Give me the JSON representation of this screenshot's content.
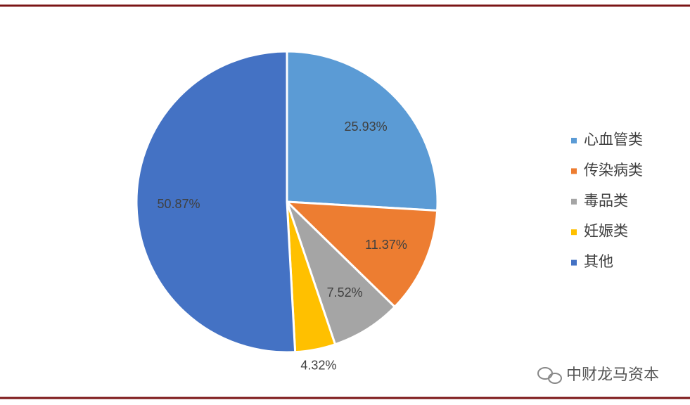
{
  "chart_data": {
    "type": "pie",
    "categories": [
      "心血管类",
      "传染病类",
      "毒品类",
      "妊娠类",
      "其他"
    ],
    "values": [
      25.93,
      11.37,
      7.52,
      4.32,
      50.87
    ],
    "value_labels": [
      "25.93%",
      "11.37%",
      "7.52%",
      "4.32%",
      "50.87%"
    ],
    "colors": [
      "#5b9bd5",
      "#ed7d31",
      "#a5a5a5",
      "#ffc000",
      "#4472c4"
    ],
    "legend": "right"
  },
  "watermark": "中财龙马资本"
}
